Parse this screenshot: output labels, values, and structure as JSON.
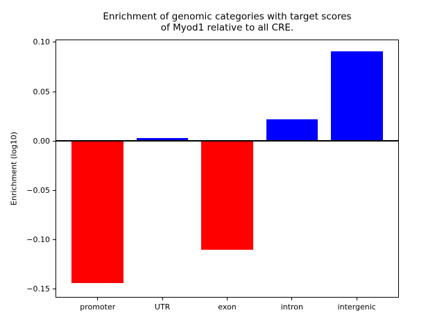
{
  "chart_data": {
    "type": "bar",
    "title": "Enrichment of genomic categories with target scores\nof Myod1 relative to all CRE.",
    "title_lines": [
      "Enrichment of genomic categories with target scores",
      "of Myod1 relative to all CRE."
    ],
    "xlabel": "",
    "ylabel": "Enrichment (log10)",
    "categories": [
      "promoter",
      "UTR",
      "exon",
      "intron",
      "intergenic"
    ],
    "values": [
      -0.144,
      0.003,
      -0.11,
      0.022,
      0.091
    ],
    "positive_color": "#0000ff",
    "negative_color": "#ff0000",
    "axis_color": "#000000",
    "background_color": "#ffffff",
    "ylim": [
      -0.158,
      0.102
    ],
    "xlim": [
      -0.64,
      4.64
    ],
    "bar_width": 0.8,
    "yticks": [
      0.1,
      0.05,
      0.0,
      -0.05,
      -0.1,
      -0.15
    ],
    "ytick_labels": [
      "0.10",
      "0.05",
      "0.00",
      "−0.05",
      "−0.10",
      "−0.15"
    ],
    "zero_line": true,
    "grid": false,
    "legend_position": "none"
  }
}
